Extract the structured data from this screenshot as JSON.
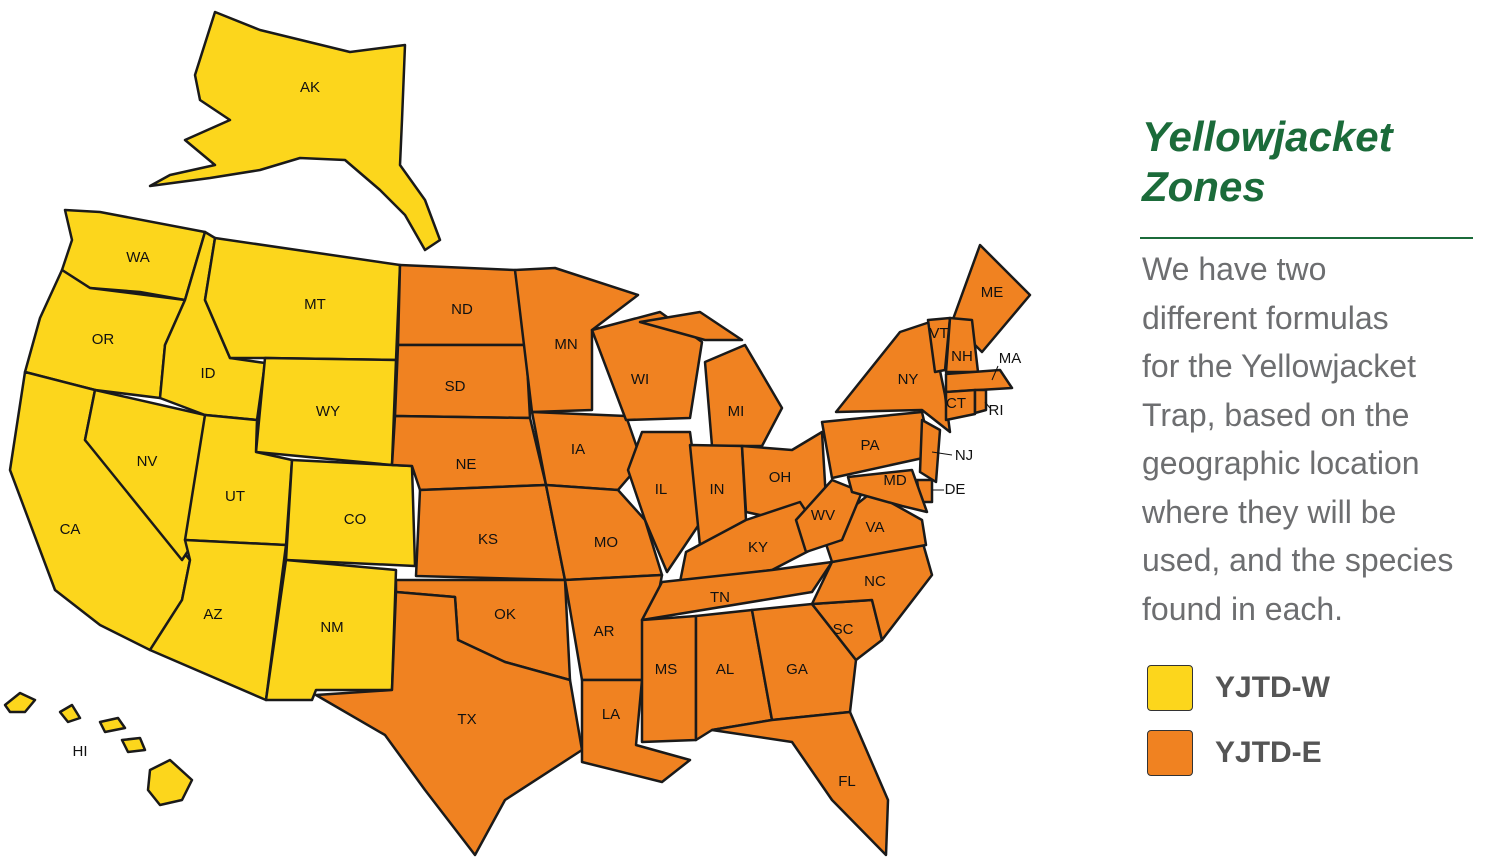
{
  "header": {
    "title_lines": [
      "Yellowjacket",
      "Zones"
    ]
  },
  "description_lines": [
    "We have two",
    "different formulas",
    "for the Yellowjacket",
    "Trap, based on the",
    "geographic location",
    "where they will be",
    "used, and the species",
    "found in each."
  ],
  "legend": {
    "items": [
      {
        "label": "YJTD-W",
        "color": "#fcd61c",
        "states": [
          "AK",
          "WA",
          "OR",
          "CA",
          "NV",
          "ID",
          "MT",
          "WY",
          "UT",
          "CO",
          "AZ",
          "NM",
          "HI"
        ]
      },
      {
        "label": "YJTD-E",
        "color": "#f08221",
        "states": [
          "ND",
          "SD",
          "NE",
          "KS",
          "OK",
          "TX",
          "MN",
          "IA",
          "MO",
          "AR",
          "LA",
          "WI",
          "IL",
          "MI",
          "IN",
          "OH",
          "KY",
          "TN",
          "MS",
          "AL",
          "GA",
          "FL",
          "SC",
          "NC",
          "VA",
          "WV",
          "PA",
          "NY",
          "ME",
          "VT",
          "NH",
          "MA",
          "CT",
          "RI",
          "NJ",
          "DE",
          "MD"
        ]
      }
    ]
  }
}
